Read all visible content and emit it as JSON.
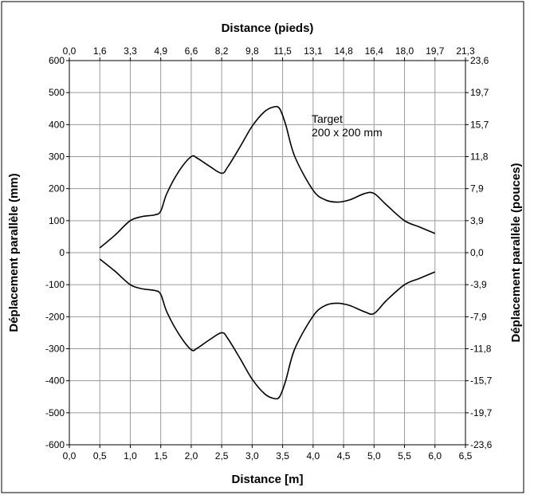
{
  "chart_data": {
    "type": "line",
    "title": "",
    "xlabel": "Distance [m]",
    "xlabel_top": "Distance (pieds)",
    "ylabel": "Déplacement parallèle (mm)",
    "ylabel_right": "Déplacement parallèle (pouces)",
    "xlim": [
      0,
      6.5
    ],
    "ylim": [
      -600,
      600
    ],
    "grid": true,
    "x_ticks": [
      0,
      0.5,
      1.0,
      1.5,
      2.0,
      2.5,
      3.0,
      3.5,
      4.0,
      4.5,
      5.0,
      5.5,
      6.0,
      6.5
    ],
    "x_tick_labels": [
      "0,0",
      "0,5",
      "1,0",
      "1,5",
      "2,0",
      "2,5",
      "3,0",
      "3,5",
      "4,0",
      "4,5",
      "5,0",
      "5,5",
      "6,0",
      "6,5"
    ],
    "x_top_tick_labels": [
      "0,0",
      "1,6",
      "3,3",
      "4,9",
      "6,6",
      "8,2",
      "9,8",
      "11,5",
      "13,1",
      "14,8",
      "16,4",
      "18,0",
      "19,7",
      "21,3"
    ],
    "y_ticks": [
      -600,
      -500,
      -400,
      -300,
      -200,
      -100,
      0,
      100,
      200,
      300,
      400,
      500,
      600
    ],
    "y_tick_labels": [
      "-600",
      "-500",
      "-400",
      "-300",
      "-200",
      "-100",
      "0",
      "100",
      "200",
      "300",
      "400",
      "500",
      "600"
    ],
    "y_right_tick_labels": [
      "-23,6",
      "-19,7",
      "-15,7",
      "-11,8",
      "-7,9",
      "-3,9",
      "0,0",
      "3,9",
      "7,9",
      "11,8",
      "15,7",
      "19,7",
      "23,6"
    ],
    "annotation": [
      "Target",
      "200 x 200 mm"
    ],
    "series": [
      {
        "x": [
          0.5,
          0.75,
          1.0,
          1.2,
          1.4,
          1.5,
          1.6,
          1.8,
          2.0,
          2.1,
          2.3,
          2.5,
          2.6,
          2.8,
          3.0,
          3.2,
          3.35,
          3.45,
          3.55,
          3.7,
          4.0,
          4.2,
          4.4,
          4.6,
          4.85,
          5.0,
          5.2,
          5.5,
          5.75,
          6.0
        ],
        "y": [
          15,
          55,
          100,
          113,
          118,
          130,
          185,
          255,
          300,
          295,
          270,
          248,
          268,
          330,
          395,
          440,
          455,
          450,
          400,
          300,
          195,
          165,
          158,
          165,
          185,
          185,
          150,
          100,
          80,
          60
        ],
        "color": "#000000"
      },
      {
        "x": [
          0.5,
          0.75,
          1.0,
          1.2,
          1.4,
          1.5,
          1.6,
          1.8,
          2.0,
          2.1,
          2.3,
          2.5,
          2.6,
          2.8,
          3.0,
          3.2,
          3.35,
          3.45,
          3.55,
          3.7,
          4.0,
          4.2,
          4.4,
          4.6,
          4.85,
          5.0,
          5.2,
          5.5,
          5.75,
          6.0
        ],
        "y": [
          -20,
          -58,
          -100,
          -113,
          -118,
          -130,
          -185,
          -255,
          -303,
          -298,
          -272,
          -250,
          -268,
          -330,
          -395,
          -440,
          -455,
          -450,
          -400,
          -300,
          -198,
          -165,
          -158,
          -165,
          -185,
          -190,
          -150,
          -100,
          -80,
          -60
        ],
        "color": "#000000"
      }
    ]
  }
}
